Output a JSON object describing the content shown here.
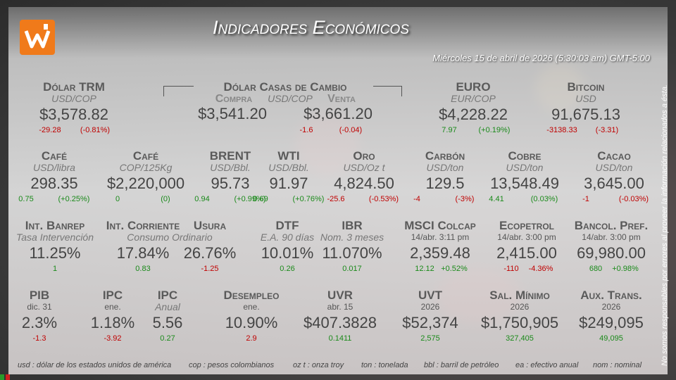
{
  "header": {
    "title": "Indicadores Económicos",
    "date": "Miércoles 15 de abril de 2026 (5:30:03 am) GMT-5:00"
  },
  "side_note": "No somos responsables por errores al proveer la información relacionados a ésta.",
  "rows": [
    [
      {
        "name": "Dólar TRM",
        "unit": "USD/COP",
        "value": "$3,578.82",
        "change": "-29.28",
        "change_pct": "(-0.81%)",
        "color": "#c00000"
      },
      {
        "name": "Dólar Casas de Cambio",
        "unit": "USD/COP",
        "buy_label": "Compra",
        "sell_label": "Venta",
        "buy_value": "$3,541.20",
        "sell_value": "$3,661.20",
        "change": "-1.6",
        "change_pct": "(-0.04)",
        "color": "#c00000"
      },
      {
        "name": "EURO",
        "unit": "EUR/COP",
        "value": "$4,228.22",
        "change": "7.97",
        "change_pct": "(+0.19%)",
        "color": "#1a8a1a"
      },
      {
        "name": "Bitcoin",
        "unit": "USD",
        "value": "91,675.13",
        "change": "-3138.33",
        "change_pct": "(-3.31)",
        "color": "#c00000"
      }
    ],
    [
      {
        "name": "Café",
        "unit": "USD/libra",
        "value": "298.35",
        "change": "0.75",
        "change_pct": "(+0.25%)",
        "color": "#1a8a1a"
      },
      {
        "name": "Café",
        "unit": "COP/125Kg",
        "value": "$2,220,000",
        "change": "0",
        "change_pct": "(0)",
        "color": "#1a8a1a"
      },
      {
        "name": "BRENT",
        "unit": "USD/Bbl.",
        "value": "95.73",
        "change": "0.94",
        "change_pct": "(+0.99%)",
        "color": "#1a8a1a"
      },
      {
        "name": "WTI",
        "unit": "USD/Bbl.",
        "value": "91.97",
        "change": "0.69",
        "change_pct": "(+0.76%)",
        "color": "#1a8a1a"
      },
      {
        "name": "Oro",
        "unit": "USD/Oz t",
        "value": "4,824.50",
        "change": "-25.6",
        "change_pct": "(-0.53%)",
        "color": "#c00000"
      },
      {
        "name": "Carbón",
        "unit": "USD/ton",
        "value": "129.5",
        "change": "-4",
        "change_pct": "(-3%)",
        "color": "#c00000"
      },
      {
        "name": "Cobre",
        "unit": "USD/ton",
        "value": "13,548.49",
        "change": "4.41",
        "change_pct": "(0.03%)",
        "color": "#1a8a1a"
      },
      {
        "name": "Cacao",
        "unit": "USD/ton",
        "value": "3,645.00",
        "change": "-1",
        "change_pct": "(-0.03%)",
        "color": "#c00000"
      }
    ],
    [
      {
        "name": "Int. Banrep",
        "unit": "Tasa Intervención",
        "value": "11.25%",
        "change": "1",
        "color": "#1a8a1a"
      },
      {
        "name": "Int. Corriente",
        "unit": "Consumo Ordinario",
        "value": "17.84%",
        "change": "0.83",
        "color": "#1a8a1a"
      },
      {
        "name": "Usura",
        "value": "26.76%",
        "change": "-1.25",
        "color": "#c00000"
      },
      {
        "name": "DTF",
        "unit": "E.A. 90 días",
        "value": "10.01%",
        "change": "0.26",
        "color": "#1a8a1a"
      },
      {
        "name": "IBR",
        "unit": "Nom. 3 meses",
        "value": "11.070%",
        "change": "0.017",
        "color": "#1a8a1a"
      },
      {
        "name": "MSCI Colcap",
        "date": "14/abr. 3:11 pm",
        "value": "2,359.48",
        "change": "12.12",
        "change_pct": "+0.52%",
        "color": "#1a8a1a"
      },
      {
        "name": "Ecopetrol",
        "date": "14/abr. 3:00 pm",
        "value": "2,415.00",
        "change": "-110",
        "change_pct": "-4.36%",
        "color": "#c00000"
      },
      {
        "name": "Bancol. Pref.",
        "date": "14/abr. 3:00 pm",
        "value": "69,980.00",
        "change": "680",
        "change_pct": "+0.98%",
        "color": "#1a8a1a"
      }
    ],
    [
      {
        "name": "PIB",
        "date": "dic. 31",
        "value": "2.3%",
        "change": "-1.3",
        "color": "#c00000"
      },
      {
        "name": "IPC",
        "date": "ene.",
        "value": "1.18%",
        "change": "-3.92",
        "color": "#c00000"
      },
      {
        "name": "IPC",
        "unit": "Anual",
        "value": "5.56",
        "change": "0.27",
        "color": "#1a8a1a"
      },
      {
        "name": "Desempleo",
        "date": "ene.",
        "value": "10.90%",
        "change": "2.9",
        "color": "#c00000"
      },
      {
        "name": "UVR",
        "date": "abr. 15",
        "value": "$407.3828",
        "change": "0.1411",
        "color": "#1a8a1a"
      },
      {
        "name": "UVT",
        "date": "2026",
        "value": "$52,374",
        "change": "2,575",
        "color": "#1a8a1a"
      },
      {
        "name": "Sal. Mínimo",
        "date": "2026",
        "value": "$1,750,905",
        "change": "327,405",
        "color": "#1a8a1a"
      },
      {
        "name": "Aux. Trans.",
        "date": "2026",
        "value": "$249,095",
        "change": "49,095",
        "color": "#1a8a1a"
      }
    ]
  ],
  "footer": [
    "usd : dólar de los estados unidos de américa",
    "cop : pesos colombianos",
    "oz t : onza troy",
    "ton : tonelada",
    "bbl : barril de petróleo",
    "ea : efectivo anual",
    "nom : nominal"
  ]
}
